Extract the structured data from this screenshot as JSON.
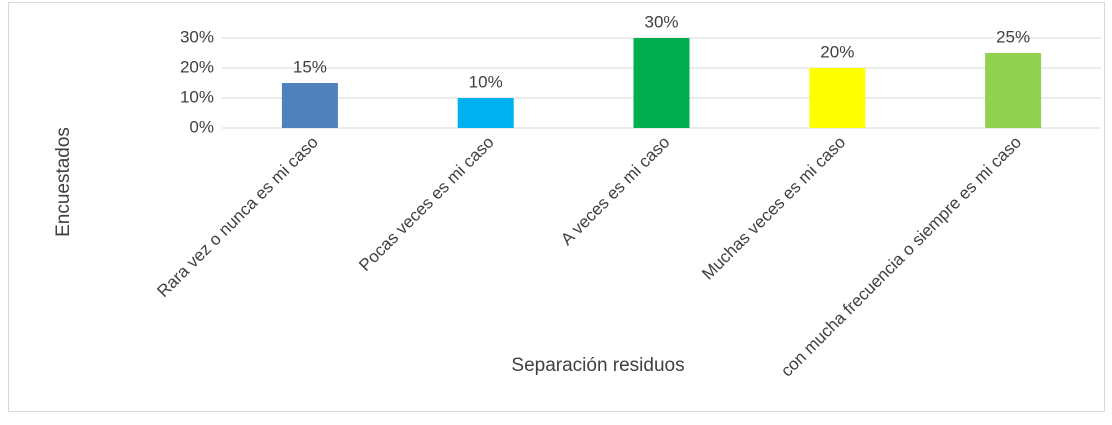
{
  "chart_data": {
    "type": "bar",
    "categories": [
      "Rara vez o nunca es mi caso",
      "Pocas veces es mi caso",
      "A veces es mi caso",
      "Muchas veces es mi caso",
      "con mucha frecuencia o siempre es mi caso"
    ],
    "values": [
      15,
      10,
      30,
      20,
      25
    ],
    "value_labels": [
      "15%",
      "10%",
      "30%",
      "20%",
      "25%"
    ],
    "colors": [
      "#4f81bd",
      "#00b0f0",
      "#00b050",
      "#ffff00",
      "#92d050"
    ],
    "x_label": "Separación residuos",
    "y_label": "Encuestados",
    "ylim": [
      0,
      30
    ],
    "yticks": [
      {
        "value": 0,
        "label": "0%"
      },
      {
        "value": 10,
        "label": "10%"
      },
      {
        "value": 20,
        "label": "20%"
      },
      {
        "value": 30,
        "label": "30%"
      }
    ],
    "grid": true
  }
}
